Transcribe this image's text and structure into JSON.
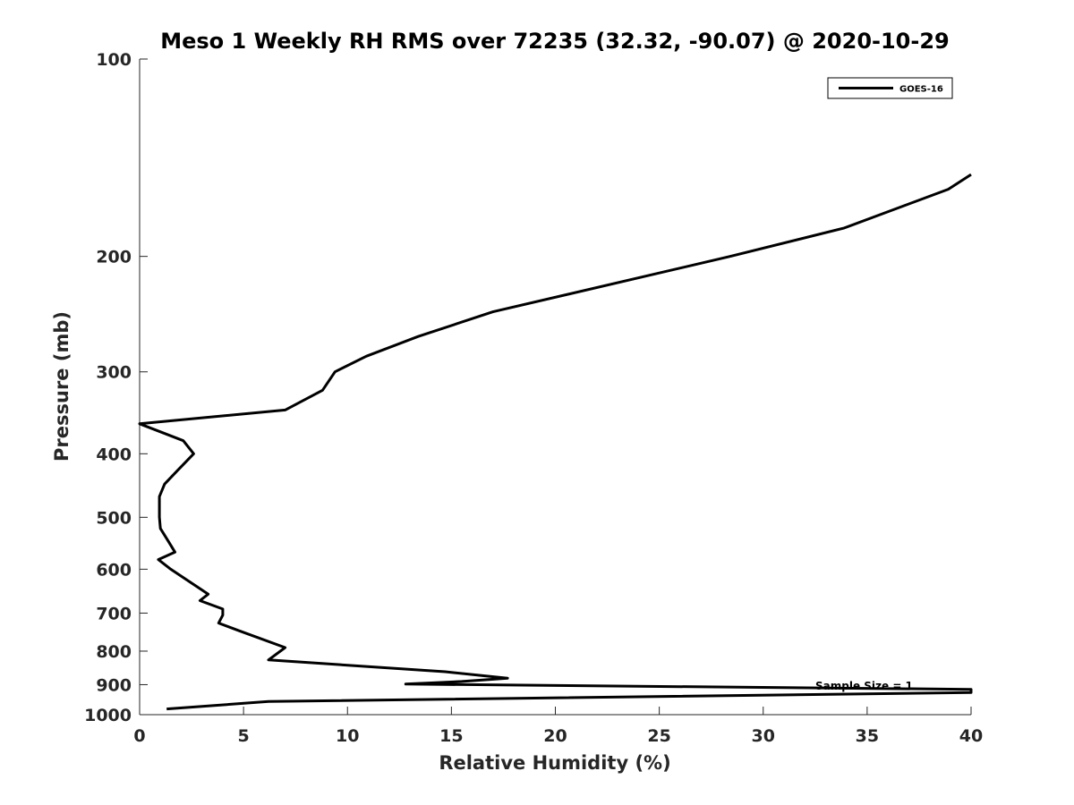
{
  "chart_data": {
    "type": "line",
    "title": "Meso 1 Weekly RH RMS over 72235 (32.32, -90.07) @ 2020-10-29",
    "xlabel": "Relative Humidity (%)",
    "ylabel": "Pressure (mb)",
    "xlim": [
      0,
      40
    ],
    "ylim": [
      100,
      1000
    ],
    "y_scale": "log",
    "y_reversed": true,
    "x_ticks": [
      "0",
      "5",
      "10",
      "15",
      "20",
      "25",
      "30",
      "35",
      "40"
    ],
    "y_ticks": [
      "100",
      "200",
      "300",
      "400",
      "500",
      "600",
      "700",
      "800",
      "900",
      "1000"
    ],
    "grid": false,
    "legend_position": "top-right",
    "annotation": "Sample Size = 1",
    "series": [
      {
        "name": "GOES-16",
        "color": "#000000",
        "points": [
          [
            40.0,
            150
          ],
          [
            38.9,
            158
          ],
          [
            33.9,
            181
          ],
          [
            28.4,
            200
          ],
          [
            17.0,
            243
          ],
          [
            13.4,
            265
          ],
          [
            10.9,
            284
          ],
          [
            9.4,
            300
          ],
          [
            8.8,
            320
          ],
          [
            7.0,
            343
          ],
          [
            0.0,
            360
          ],
          [
            2.1,
            382
          ],
          [
            2.6,
            400
          ],
          [
            1.8,
            425
          ],
          [
            1.2,
            445
          ],
          [
            0.95,
            465
          ],
          [
            0.95,
            500
          ],
          [
            1.0,
            520
          ],
          [
            1.4,
            545
          ],
          [
            1.7,
            565
          ],
          [
            0.9,
            580
          ],
          [
            1.5,
            600
          ],
          [
            3.3,
            655
          ],
          [
            2.9,
            670
          ],
          [
            4.0,
            690
          ],
          [
            4.0,
            705
          ],
          [
            3.8,
            725
          ],
          [
            4.8,
            745
          ],
          [
            7.0,
            790
          ],
          [
            6.2,
            825
          ],
          [
            14.7,
            860
          ],
          [
            17.7,
            880
          ],
          [
            15.5,
            890
          ],
          [
            12.8,
            898
          ],
          [
            40.0,
            915
          ],
          [
            40.0,
            925
          ],
          [
            6.2,
            955
          ],
          [
            1.3,
            980
          ]
        ]
      }
    ]
  }
}
